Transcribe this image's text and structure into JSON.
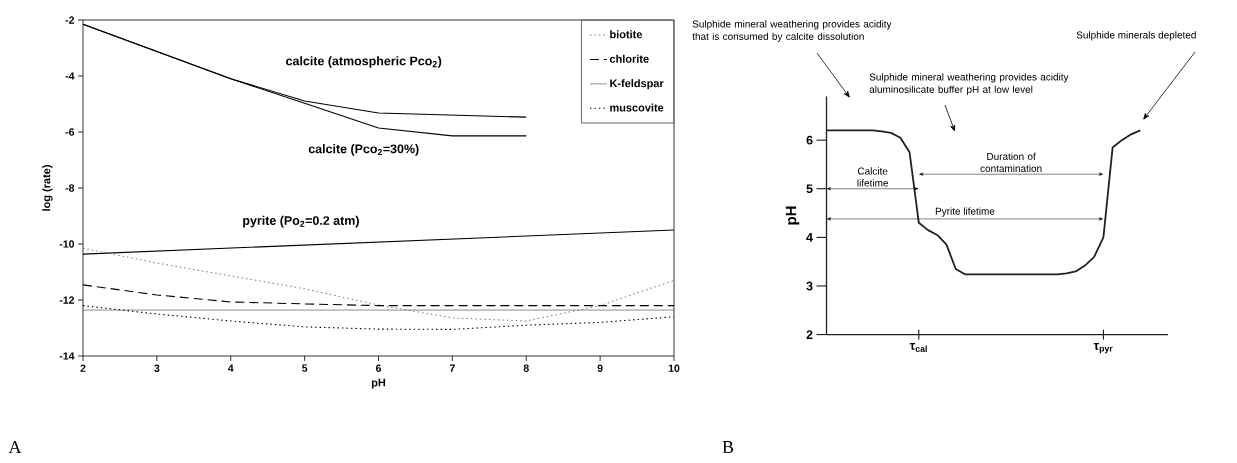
{
  "chart_data": [
    {
      "type": "line",
      "xlabel": "pH",
      "ylabel": "log (rate)",
      "xlim": [
        2,
        10
      ],
      "ylim": [
        -14,
        -2
      ],
      "xticks": [
        2,
        3,
        4,
        5,
        6,
        7,
        8,
        9,
        10
      ],
      "yticks": [
        -14,
        -12,
        -10,
        -8,
        -6,
        -4,
        -2
      ],
      "legend": "top right",
      "series": [
        {
          "color": "#000000",
          "line_style": "solid",
          "x": [
            2,
            4,
            5,
            6,
            8
          ],
          "values": [
            -2.15,
            -4.1,
            -4.89,
            -5.32,
            -5.47
          ]
        },
        {
          "color": "#000000",
          "line_style": "solid",
          "x": [
            2,
            4,
            5,
            6,
            7,
            8
          ],
          "values": [
            -2.15,
            -4.1,
            -4.97,
            -5.86,
            -6.14,
            -6.14
          ]
        },
        {
          "color": "#000000",
          "line_style": "solid",
          "x": [
            2,
            10
          ],
          "values": [
            -10.36,
            -9.5
          ]
        },
        {
          "name": "biotite",
          "color": "#666666",
          "line_style": "dotted",
          "x": [
            2,
            3,
            4,
            5,
            6,
            7,
            8,
            9,
            10
          ],
          "values": [
            -10.15,
            -10.68,
            -11.14,
            -11.6,
            -12.18,
            -12.64,
            -12.75,
            -12.2,
            -11.3
          ]
        },
        {
          "name": "chlorite",
          "color": "#000000",
          "line_style": "dashed",
          "x": [
            2,
            3,
            4,
            5,
            6,
            7,
            8,
            9,
            10
          ],
          "values": [
            -11.46,
            -11.82,
            -12.07,
            -12.14,
            -12.2,
            -12.2,
            -12.2,
            -12.2,
            -12.2
          ]
        },
        {
          "name": "K-feldspar",
          "color": "#404040",
          "line_style": "solid",
          "x": [
            2,
            10
          ],
          "values": [
            -12.36,
            -12.36
          ]
        },
        {
          "name": "muscovite",
          "color": "#000000",
          "line_style": "dotted",
          "x": [
            2,
            3,
            4,
            5,
            6,
            7,
            8,
            9,
            10
          ],
          "values": [
            -12.2,
            -12.5,
            -12.75,
            -12.96,
            -13.04,
            -13.05,
            -12.9,
            -12.8,
            -12.6
          ]
        }
      ],
      "annotations": [
        "calcite (atmospheric Pco$_{2}$)",
        "calcite (Pco$_{2}$=30%)",
        "pyrite (Po$_{2}$=0.2 atm)",
        "A"
      ]
    },
    {
      "type": "line",
      "ylabel": "pH",
      "ylim": [
        2,
        6.9
      ],
      "yticks": [
        2,
        3,
        4,
        5,
        6
      ],
      "categories": [
        null,
        null,
        null,
        null,
        null,
        null,
        null,
        null,
        null,
        null,
        "τ$_{cal}$",
        null,
        null,
        null,
        null,
        null,
        null,
        null,
        null,
        null,
        null,
        null,
        null,
        null,
        null,
        null,
        null,
        null,
        null,
        null,
        "τ$_{pyr}$",
        null,
        null,
        null,
        null,
        null,
        null,
        null
      ],
      "series": [
        {
          "color": "#231f20",
          "line_style": "solid",
          "values": [
            6.2,
            6.2,
            6.2,
            6.2,
            6.2,
            6.2,
            6.18,
            6.15,
            6.05,
            5.75,
            4.3,
            4.15,
            4.05,
            3.85,
            3.35,
            3.24,
            3.24,
            3.24,
            3.24,
            3.24,
            3.24,
            3.24,
            3.24,
            3.24,
            3.24,
            3.24,
            3.26,
            3.3,
            3.42,
            3.6,
            4.0,
            5.85,
            6.0,
            6.12,
            6.2,
            null,
            null,
            null
          ]
        }
      ],
      "annotations": [
        "Sulphide mineral weathering provides acidity that is consumed by calcite dissolution",
        "Sulphide mineral weathering provides acidity aluminosilicate buffer pH at low level",
        "Sulphide minerals depleted",
        "Calcite lifetime",
        "Duration of contamination",
        "Pyrite lifetime",
        "B"
      ]
    }
  ]
}
